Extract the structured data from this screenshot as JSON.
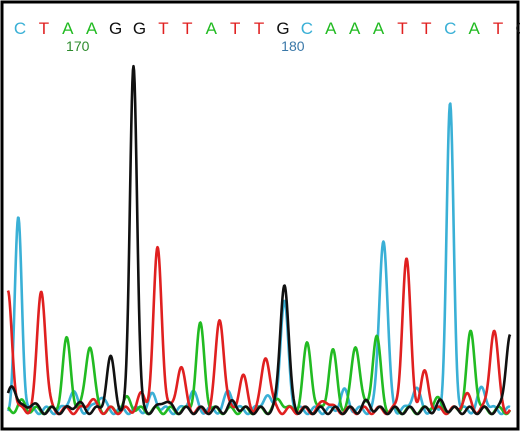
{
  "chart_data": {
    "type": "line",
    "bases": [
      "C",
      "T",
      "A",
      "A",
      "G",
      "G",
      "T",
      "T",
      "A",
      "T",
      "T",
      "G",
      "C",
      "A",
      "A",
      "A",
      "T",
      "T",
      "C",
      "A",
      "T",
      "G"
    ],
    "position_labels": [
      {
        "text": "170",
        "base_index": 3,
        "color": "#2e8b2e"
      },
      {
        "text": "180",
        "base_index": 12,
        "color": "#3a78a8"
      }
    ],
    "base_colors": {
      "A": "#22bb22",
      "C": "#3ab0d6",
      "G": "#111111",
      "T": "#e02020"
    },
    "xlim": [
      0,
      21.8
    ],
    "ylim": [
      0,
      1.0
    ],
    "baseline_noise": 0.02,
    "series": [
      {
        "base": "C",
        "color": "#3ab0d6",
        "peaks": [
          [
            0.45,
            0.52
          ],
          [
            12.0,
            0.29
          ],
          [
            16.3,
            0.47
          ],
          [
            19.2,
            0.83
          ],
          [
            20.6,
            0.06
          ]
        ],
        "noise": [
          [
            2.8,
            0.05
          ],
          [
            4.0,
            0.04
          ],
          [
            6.3,
            0.04
          ],
          [
            8.0,
            0.05
          ],
          [
            9.6,
            0.05
          ],
          [
            11.2,
            0.04
          ],
          [
            14.6,
            0.05
          ],
          [
            17.7,
            0.06
          ]
        ]
      },
      {
        "base": "T",
        "color": "#e02020",
        "peaks": [
          [
            0.0,
            0.32
          ],
          [
            1.45,
            0.33
          ],
          [
            6.5,
            0.44
          ],
          [
            7.5,
            0.12
          ],
          [
            9.2,
            0.25
          ],
          [
            10.2,
            0.09
          ],
          [
            11.2,
            0.15
          ],
          [
            17.3,
            0.41
          ],
          [
            18.1,
            0.1
          ],
          [
            21.1,
            0.22
          ]
        ],
        "noise": [
          [
            3.6,
            0.03
          ],
          [
            5.8,
            0.04
          ],
          [
            13.8,
            0.03
          ],
          [
            19.9,
            0.04
          ]
        ]
      },
      {
        "base": "A",
        "color": "#22bb22",
        "peaks": [
          [
            2.55,
            0.19
          ],
          [
            3.55,
            0.18
          ],
          [
            8.35,
            0.23
          ],
          [
            13.0,
            0.18
          ],
          [
            14.1,
            0.16
          ],
          [
            15.1,
            0.18
          ],
          [
            16.0,
            0.2
          ],
          [
            20.1,
            0.21
          ]
        ],
        "noise": [
          [
            0.6,
            0.02
          ],
          [
            5.2,
            0.03
          ],
          [
            11.8,
            0.03
          ],
          [
            18.6,
            0.03
          ]
        ]
      },
      {
        "base": "G",
        "color": "#111111",
        "peaks": [
          [
            0.2,
            0.07
          ],
          [
            4.45,
            0.14
          ],
          [
            5.45,
            0.95
          ],
          [
            12.0,
            0.35
          ],
          [
            21.8,
            0.21
          ]
        ],
        "noise": [
          [
            1.0,
            0.02
          ],
          [
            3.0,
            0.02
          ],
          [
            6.8,
            0.03
          ],
          [
            9.8,
            0.02
          ],
          [
            15.6,
            0.02
          ],
          [
            18.8,
            0.02
          ]
        ]
      }
    ]
  }
}
